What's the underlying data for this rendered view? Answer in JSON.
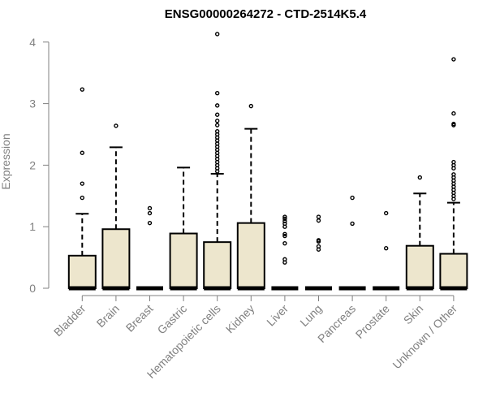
{
  "chart_data": {
    "type": "box",
    "title": "ENSG00000264272 - CTD-2514K5.4",
    "xlabel": "",
    "ylabel": "Expression",
    "ylim": [
      0,
      4.2
    ],
    "yticks": [
      0,
      1,
      2,
      3,
      4
    ],
    "grid": false,
    "colors": {
      "box_fill": "#ede6cd",
      "box_stroke": "#000000",
      "axis_text": "#808080"
    },
    "categories": [
      "Bladder",
      "Brain",
      "Breast",
      "Gastric",
      "Hematopoietic cells",
      "Kidney",
      "Liver",
      "Lung",
      "Pancreas",
      "Prostate",
      "Skin",
      "Unknown / Other"
    ],
    "boxes": [
      {
        "min": 0,
        "q1": 0,
        "median": 0,
        "q3": 0.53,
        "whisker_high": 1.21,
        "outliers": [
          1.47,
          1.7,
          2.2,
          3.23
        ]
      },
      {
        "min": 0,
        "q1": 0,
        "median": 0,
        "q3": 0.96,
        "whisker_high": 2.29,
        "outliers": [
          2.64
        ]
      },
      {
        "min": 0,
        "q1": 0,
        "median": 0,
        "q3": 0,
        "whisker_high": 0,
        "outliers": [
          1.06,
          1.22,
          1.3
        ]
      },
      {
        "min": 0,
        "q1": 0,
        "median": 0,
        "q3": 0.89,
        "whisker_high": 1.96,
        "outliers": []
      },
      {
        "min": 0,
        "q1": 0,
        "median": 0,
        "q3": 0.75,
        "whisker_high": 1.86,
        "outliers": [
          1.9,
          1.95,
          2.0,
          2.05,
          2.1,
          2.15,
          2.2,
          2.25,
          2.3,
          2.35,
          2.4,
          2.45,
          2.5,
          2.55,
          2.65,
          2.72,
          2.82,
          2.97,
          3.17,
          4.13
        ]
      },
      {
        "min": 0,
        "q1": 0,
        "median": 0,
        "q3": 1.06,
        "whisker_high": 2.59,
        "outliers": [
          2.96
        ]
      },
      {
        "min": 0,
        "q1": 0,
        "median": 0,
        "q3": 0,
        "whisker_high": 0,
        "outliers": [
          0.42,
          0.47,
          0.73,
          0.85,
          0.88,
          1.0,
          1.05,
          1.09,
          1.13,
          1.16
        ]
      },
      {
        "min": 0,
        "q1": 0,
        "median": 0,
        "q3": 0,
        "whisker_high": 0,
        "outliers": [
          0.63,
          0.68,
          0.76,
          0.78,
          1.1,
          1.16
        ]
      },
      {
        "min": 0,
        "q1": 0,
        "median": 0,
        "q3": 0,
        "whisker_high": 0,
        "outliers": [
          1.05,
          1.47
        ]
      },
      {
        "min": 0,
        "q1": 0,
        "median": 0,
        "q3": 0,
        "whisker_high": 0,
        "outliers": [
          0.65,
          1.22
        ]
      },
      {
        "min": 0,
        "q1": 0,
        "median": 0,
        "q3": 0.69,
        "whisker_high": 1.54,
        "outliers": [
          1.8
        ]
      },
      {
        "min": 0,
        "q1": 0,
        "median": 0,
        "q3": 0.56,
        "whisker_high": 1.39,
        "outliers": [
          1.45,
          1.5,
          1.55,
          1.6,
          1.65,
          1.7,
          1.75,
          1.8,
          1.85,
          1.95,
          2.0,
          2.05,
          2.65,
          2.67,
          2.84,
          3.72
        ]
      }
    ]
  }
}
